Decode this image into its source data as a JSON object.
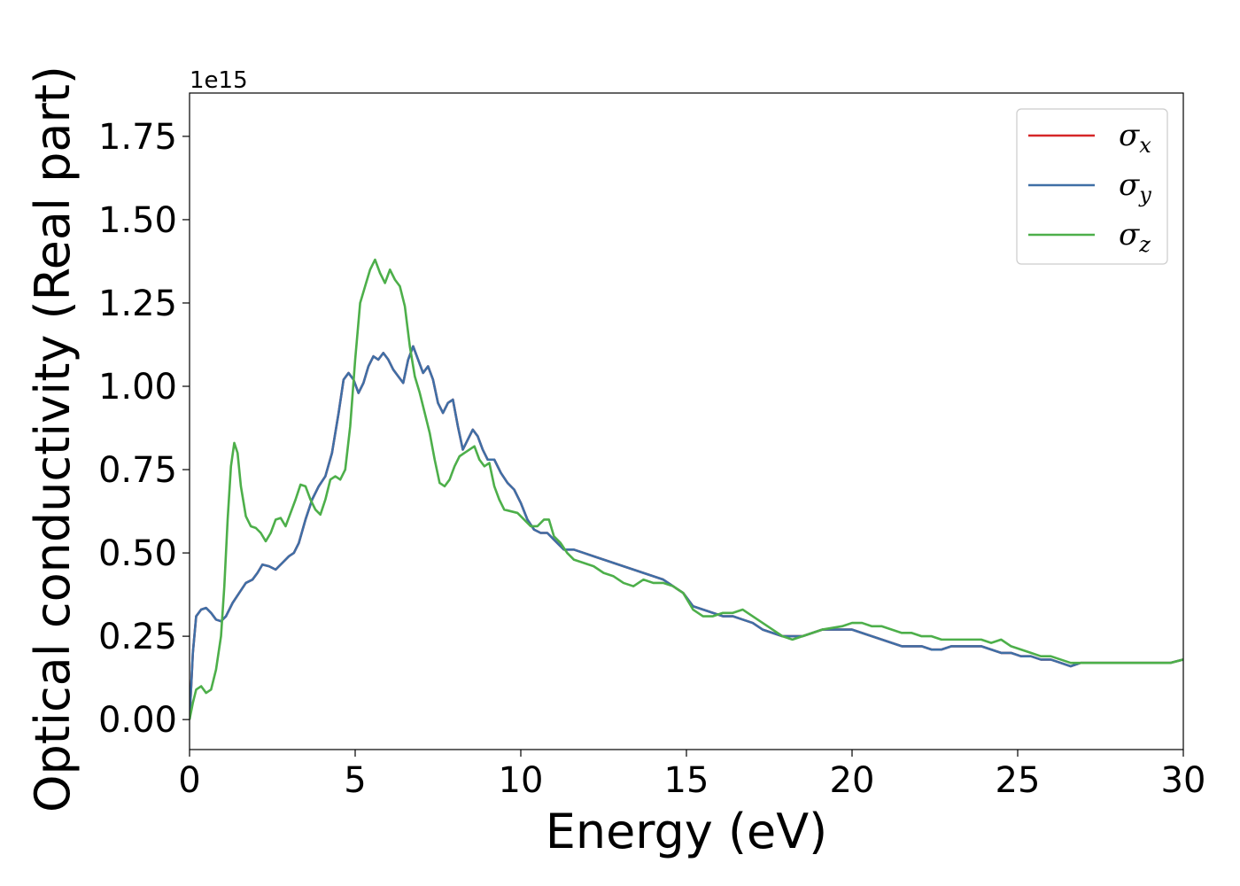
{
  "chart_data": {
    "type": "line",
    "xlabel": "Energy (eV)",
    "ylabel": "Optical conductivity (Real part)",
    "y_offset_label": "1e15",
    "xlim": [
      0,
      30
    ],
    "ylim": [
      -0.09,
      1.88
    ],
    "x_ticks": [
      0,
      5,
      10,
      15,
      20,
      25,
      30
    ],
    "x_tick_labels": [
      "0",
      "5",
      "10",
      "15",
      "20",
      "25",
      "30"
    ],
    "y_ticks": [
      0.0,
      0.25,
      0.5,
      0.75,
      1.0,
      1.25,
      1.5,
      1.75
    ],
    "y_tick_labels": [
      "0.00",
      "0.25",
      "0.50",
      "0.75",
      "1.00",
      "1.25",
      "1.50",
      "1.75"
    ],
    "grid": false,
    "legend_position": "top-right",
    "series": [
      {
        "name": "σ",
        "subscript": "x",
        "color": "#d62728",
        "x": [
          0,
          0.1,
          0.2,
          0.35,
          0.5,
          0.65,
          0.8,
          0.95,
          1.1,
          1.3,
          1.5,
          1.7,
          1.9,
          2.05,
          2.2,
          2.4,
          2.6,
          2.8,
          3.0,
          3.15,
          3.3,
          3.5,
          3.7,
          3.9,
          4.1,
          4.3,
          4.5,
          4.65,
          4.8,
          4.95,
          5.1,
          5.25,
          5.4,
          5.55,
          5.7,
          5.85,
          6.0,
          6.15,
          6.3,
          6.45,
          6.6,
          6.75,
          6.9,
          7.05,
          7.2,
          7.35,
          7.5,
          7.65,
          7.8,
          7.95,
          8.1,
          8.25,
          8.4,
          8.55,
          8.7,
          8.85,
          9.0,
          9.2,
          9.4,
          9.6,
          9.8,
          10.0,
          10.2,
          10.4,
          10.6,
          10.8,
          11.0,
          11.3,
          11.6,
          11.9,
          12.2,
          12.5,
          12.8,
          13.1,
          13.4,
          13.7,
          14.0,
          14.3,
          14.6,
          14.9,
          15.2,
          15.5,
          15.8,
          16.1,
          16.4,
          16.7,
          17.0,
          17.3,
          17.6,
          17.9,
          18.2,
          18.5,
          18.8,
          19.1,
          19.4,
          19.7,
          20.0,
          20.3,
          20.6,
          20.9,
          21.2,
          21.5,
          21.8,
          22.1,
          22.4,
          22.7,
          23.0,
          23.3,
          23.6,
          23.9,
          24.2,
          24.5,
          24.8,
          25.1,
          25.4,
          25.7,
          26.0,
          26.3,
          26.6,
          26.9,
          27.2,
          27.5,
          27.8,
          28.1,
          28.4,
          28.7,
          29.0,
          29.3,
          29.6,
          30.0
        ],
        "y": [
          0.0,
          0.2,
          0.31,
          0.33,
          0.335,
          0.32,
          0.3,
          0.295,
          0.31,
          0.35,
          0.38,
          0.41,
          0.42,
          0.44,
          0.465,
          0.46,
          0.45,
          0.47,
          0.49,
          0.5,
          0.53,
          0.6,
          0.66,
          0.7,
          0.73,
          0.8,
          0.92,
          1.02,
          1.04,
          1.02,
          0.98,
          1.01,
          1.06,
          1.09,
          1.08,
          1.1,
          1.08,
          1.05,
          1.03,
          1.01,
          1.08,
          1.12,
          1.08,
          1.04,
          1.06,
          1.02,
          0.95,
          0.92,
          0.95,
          0.96,
          0.88,
          0.81,
          0.84,
          0.87,
          0.85,
          0.81,
          0.78,
          0.78,
          0.74,
          0.71,
          0.69,
          0.65,
          0.6,
          0.57,
          0.56,
          0.56,
          0.54,
          0.51,
          0.51,
          0.5,
          0.49,
          0.48,
          0.47,
          0.46,
          0.45,
          0.44,
          0.43,
          0.42,
          0.4,
          0.38,
          0.34,
          0.33,
          0.32,
          0.31,
          0.31,
          0.3,
          0.29,
          0.27,
          0.26,
          0.25,
          0.25,
          0.25,
          0.26,
          0.27,
          0.27,
          0.27,
          0.27,
          0.26,
          0.25,
          0.24,
          0.23,
          0.22,
          0.22,
          0.22,
          0.21,
          0.21,
          0.22,
          0.22,
          0.22,
          0.22,
          0.21,
          0.2,
          0.2,
          0.19,
          0.19,
          0.18,
          0.18,
          0.17,
          0.16,
          0.17,
          0.17,
          0.17,
          0.17,
          0.17,
          0.17,
          0.17,
          0.17,
          0.17,
          0.17,
          0.18
        ]
      },
      {
        "name": "σ",
        "subscript": "y",
        "color": "#3f6fa6",
        "x": [
          0,
          0.1,
          0.2,
          0.35,
          0.5,
          0.65,
          0.8,
          0.95,
          1.1,
          1.3,
          1.5,
          1.7,
          1.9,
          2.05,
          2.2,
          2.4,
          2.6,
          2.8,
          3.0,
          3.15,
          3.3,
          3.5,
          3.7,
          3.9,
          4.1,
          4.3,
          4.5,
          4.65,
          4.8,
          4.95,
          5.1,
          5.25,
          5.4,
          5.55,
          5.7,
          5.85,
          6.0,
          6.15,
          6.3,
          6.45,
          6.6,
          6.75,
          6.9,
          7.05,
          7.2,
          7.35,
          7.5,
          7.65,
          7.8,
          7.95,
          8.1,
          8.25,
          8.4,
          8.55,
          8.7,
          8.85,
          9.0,
          9.2,
          9.4,
          9.6,
          9.8,
          10.0,
          10.2,
          10.4,
          10.6,
          10.8,
          11.0,
          11.3,
          11.6,
          11.9,
          12.2,
          12.5,
          12.8,
          13.1,
          13.4,
          13.7,
          14.0,
          14.3,
          14.6,
          14.9,
          15.2,
          15.5,
          15.8,
          16.1,
          16.4,
          16.7,
          17.0,
          17.3,
          17.6,
          17.9,
          18.2,
          18.5,
          18.8,
          19.1,
          19.4,
          19.7,
          20.0,
          20.3,
          20.6,
          20.9,
          21.2,
          21.5,
          21.8,
          22.1,
          22.4,
          22.7,
          23.0,
          23.3,
          23.6,
          23.9,
          24.2,
          24.5,
          24.8,
          25.1,
          25.4,
          25.7,
          26.0,
          26.3,
          26.6,
          26.9,
          27.2,
          27.5,
          27.8,
          28.1,
          28.4,
          28.7,
          29.0,
          29.3,
          29.6,
          30.0
        ],
        "y": [
          0.0,
          0.2,
          0.31,
          0.33,
          0.335,
          0.32,
          0.3,
          0.295,
          0.31,
          0.35,
          0.38,
          0.41,
          0.42,
          0.44,
          0.465,
          0.46,
          0.45,
          0.47,
          0.49,
          0.5,
          0.53,
          0.6,
          0.66,
          0.7,
          0.73,
          0.8,
          0.92,
          1.02,
          1.04,
          1.02,
          0.98,
          1.01,
          1.06,
          1.09,
          1.08,
          1.1,
          1.08,
          1.05,
          1.03,
          1.01,
          1.08,
          1.12,
          1.08,
          1.04,
          1.06,
          1.02,
          0.95,
          0.92,
          0.95,
          0.96,
          0.88,
          0.81,
          0.84,
          0.87,
          0.85,
          0.81,
          0.78,
          0.78,
          0.74,
          0.71,
          0.69,
          0.65,
          0.6,
          0.57,
          0.56,
          0.56,
          0.54,
          0.51,
          0.51,
          0.5,
          0.49,
          0.48,
          0.47,
          0.46,
          0.45,
          0.44,
          0.43,
          0.42,
          0.4,
          0.38,
          0.34,
          0.33,
          0.32,
          0.31,
          0.31,
          0.3,
          0.29,
          0.27,
          0.26,
          0.25,
          0.25,
          0.25,
          0.26,
          0.27,
          0.27,
          0.27,
          0.27,
          0.26,
          0.25,
          0.24,
          0.23,
          0.22,
          0.22,
          0.22,
          0.21,
          0.21,
          0.22,
          0.22,
          0.22,
          0.22,
          0.21,
          0.2,
          0.2,
          0.19,
          0.19,
          0.18,
          0.18,
          0.17,
          0.16,
          0.17,
          0.17,
          0.17,
          0.17,
          0.17,
          0.17,
          0.17,
          0.17,
          0.17,
          0.17,
          0.18
        ]
      },
      {
        "name": "σ",
        "subscript": "z",
        "color": "#4daf4a",
        "x": [
          0,
          0.1,
          0.2,
          0.35,
          0.5,
          0.65,
          0.8,
          0.95,
          1.05,
          1.15,
          1.25,
          1.35,
          1.45,
          1.55,
          1.7,
          1.85,
          2.0,
          2.15,
          2.3,
          2.45,
          2.6,
          2.75,
          2.9,
          3.05,
          3.2,
          3.35,
          3.5,
          3.65,
          3.8,
          3.95,
          4.1,
          4.25,
          4.4,
          4.55,
          4.7,
          4.85,
          5.0,
          5.15,
          5.3,
          5.45,
          5.6,
          5.75,
          5.9,
          6.05,
          6.2,
          6.35,
          6.5,
          6.65,
          6.8,
          6.95,
          7.1,
          7.25,
          7.4,
          7.55,
          7.7,
          7.85,
          8.0,
          8.15,
          8.3,
          8.45,
          8.6,
          8.75,
          8.9,
          9.05,
          9.2,
          9.35,
          9.5,
          9.7,
          9.9,
          10.1,
          10.3,
          10.5,
          10.7,
          10.85,
          11.0,
          11.2,
          11.4,
          11.6,
          11.9,
          12.2,
          12.5,
          12.8,
          13.1,
          13.4,
          13.7,
          14.0,
          14.3,
          14.6,
          14.9,
          15.2,
          15.5,
          15.8,
          16.1,
          16.4,
          16.7,
          17.0,
          17.3,
          17.6,
          17.9,
          18.2,
          18.5,
          18.8,
          19.1,
          19.4,
          19.7,
          20.0,
          20.3,
          20.6,
          20.9,
          21.2,
          21.5,
          21.8,
          22.1,
          22.4,
          22.7,
          23.0,
          23.3,
          23.6,
          23.9,
          24.2,
          24.5,
          24.8,
          25.1,
          25.4,
          25.7,
          26.0,
          26.3,
          26.6,
          26.9,
          27.2,
          27.5,
          27.8,
          28.1,
          28.4,
          28.7,
          29.0,
          29.3,
          29.6,
          30.0
        ],
        "y": [
          0.0,
          0.05,
          0.09,
          0.1,
          0.08,
          0.09,
          0.15,
          0.25,
          0.4,
          0.6,
          0.76,
          0.83,
          0.8,
          0.7,
          0.61,
          0.58,
          0.575,
          0.56,
          0.535,
          0.56,
          0.6,
          0.605,
          0.58,
          0.62,
          0.66,
          0.705,
          0.7,
          0.66,
          0.63,
          0.615,
          0.66,
          0.72,
          0.73,
          0.72,
          0.75,
          0.88,
          1.08,
          1.25,
          1.3,
          1.35,
          1.38,
          1.34,
          1.31,
          1.35,
          1.32,
          1.3,
          1.24,
          1.12,
          1.03,
          0.98,
          0.92,
          0.86,
          0.78,
          0.71,
          0.7,
          0.72,
          0.76,
          0.79,
          0.8,
          0.81,
          0.82,
          0.78,
          0.76,
          0.77,
          0.7,
          0.66,
          0.63,
          0.625,
          0.62,
          0.6,
          0.58,
          0.58,
          0.6,
          0.6,
          0.55,
          0.53,
          0.5,
          0.48,
          0.47,
          0.46,
          0.44,
          0.43,
          0.41,
          0.4,
          0.42,
          0.41,
          0.41,
          0.4,
          0.38,
          0.33,
          0.31,
          0.31,
          0.32,
          0.32,
          0.33,
          0.31,
          0.29,
          0.27,
          0.25,
          0.24,
          0.25,
          0.26,
          0.27,
          0.275,
          0.28,
          0.29,
          0.29,
          0.28,
          0.28,
          0.27,
          0.26,
          0.26,
          0.25,
          0.25,
          0.24,
          0.24,
          0.24,
          0.24,
          0.24,
          0.23,
          0.24,
          0.22,
          0.21,
          0.2,
          0.19,
          0.19,
          0.18,
          0.17,
          0.17,
          0.17,
          0.17,
          0.17,
          0.17,
          0.17,
          0.17,
          0.17,
          0.17,
          0.17,
          0.18
        ]
      }
    ]
  }
}
